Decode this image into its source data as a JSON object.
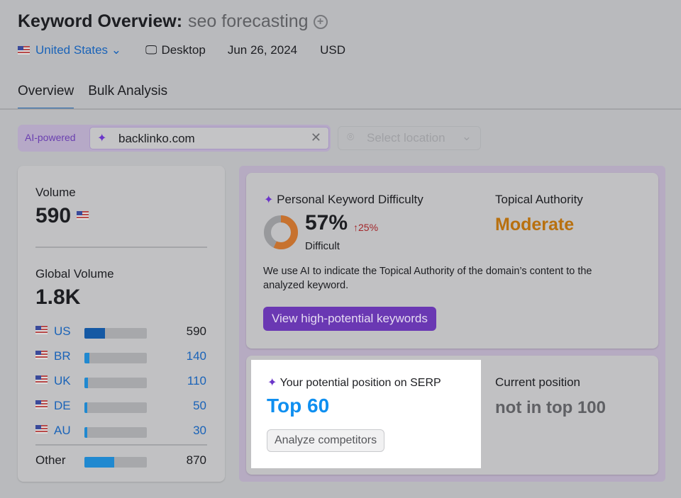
{
  "header": {
    "title": "Keyword Overview:",
    "keyword": "seo forecasting",
    "country": "United States",
    "device": "Desktop",
    "date": "Jun 26, 2024",
    "currency": "USD"
  },
  "tabs": [
    {
      "label": "Overview",
      "active": true
    },
    {
      "label": "Bulk Analysis",
      "active": false
    }
  ],
  "filter": {
    "ai_label": "AI-powered",
    "domain": "backlinko.com",
    "location_placeholder": "Select location"
  },
  "volume": {
    "label": "Volume",
    "value": "590",
    "global_label": "Global Volume",
    "global_value": "1.8K",
    "countries": [
      {
        "code": "US",
        "value": "590",
        "fill": 0.33
      },
      {
        "code": "BR",
        "value": "140",
        "fill": 0.08
      },
      {
        "code": "UK",
        "value": "110",
        "fill": 0.06
      },
      {
        "code": "DE",
        "value": "50",
        "fill": 0.04
      },
      {
        "code": "AU",
        "value": "30",
        "fill": 0.04
      }
    ],
    "other": {
      "label": "Other",
      "value": "870",
      "fill": 0.48
    }
  },
  "pkd": {
    "title": "Personal Keyword Difficulty",
    "value": "57%",
    "change": "25%",
    "level": "Difficult",
    "percent": 57,
    "color": "#c7722f"
  },
  "authority": {
    "title": "Topical Authority",
    "value": "Moderate",
    "color": "#b8700f"
  },
  "description": "We use AI to indicate the Topical Authority of the domain’s content to the analyzed keyword.",
  "buttons": {
    "view": "View high-potential keywords",
    "analyze": "Analyze competitors"
  },
  "serp": {
    "title": "Your potential position on SERP",
    "value": "Top 60",
    "current_label": "Current position",
    "current_value": "not in top 100"
  }
}
